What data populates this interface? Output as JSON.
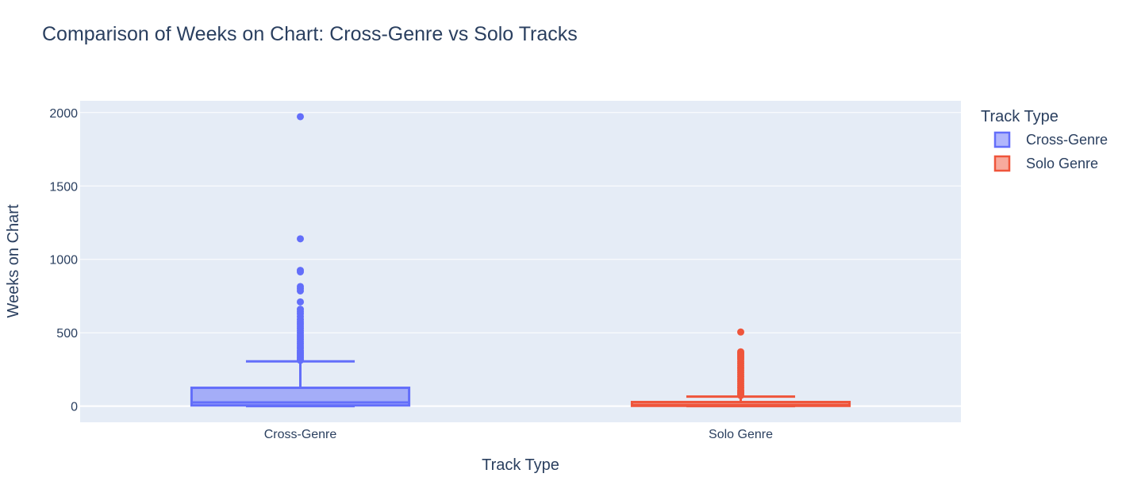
{
  "chart_data": {
    "type": "box",
    "title": "Comparison of Weeks on Chart: Cross-Genre vs Solo Tracks",
    "xlabel": "Track Type",
    "ylabel": "Weeks on Chart",
    "categories": [
      "Cross-Genre",
      "Solo Genre"
    ],
    "ylim": [
      -110,
      2080
    ],
    "yticks": [
      0,
      500,
      1000,
      1500,
      2000
    ],
    "grid": true,
    "legend": {
      "title": "Track Type",
      "placement": "top-right"
    },
    "series": [
      {
        "name": "Cross-Genre",
        "color": "#636efa",
        "lower_fence": 0,
        "q1": 5,
        "median": 25,
        "q3": 125,
        "upper_fence": 305,
        "outliers": [
          1972,
          1140,
          925,
          915,
          815,
          800,
          785,
          710,
          660,
          645,
          630,
          610,
          590,
          575,
          560,
          545,
          530,
          515,
          500,
          485,
          470,
          455,
          440,
          425,
          410,
          395,
          380,
          370,
          360,
          350,
          340,
          330,
          320,
          312
        ]
      },
      {
        "name": "Solo Genre",
        "color": "#ef553b",
        "lower_fence": 0,
        "q1": 2,
        "median": 8,
        "q3": 28,
        "upper_fence": 65,
        "outliers": [
          505,
          370,
          360,
          350,
          340,
          330,
          320,
          305,
          290,
          275,
          260,
          245,
          230,
          215,
          200,
          185,
          170,
          155,
          140,
          125,
          110,
          100,
          90,
          80,
          72
        ]
      }
    ]
  }
}
